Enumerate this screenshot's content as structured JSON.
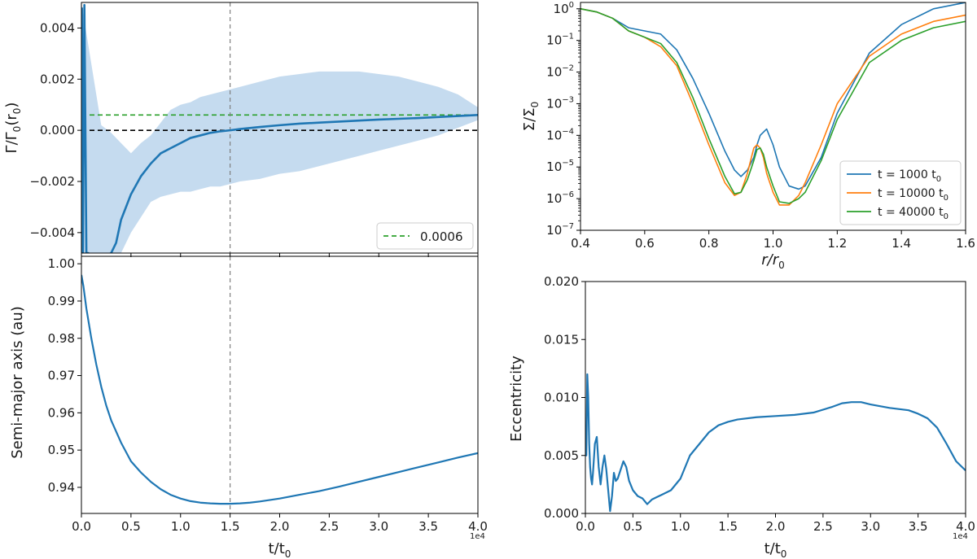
{
  "chart_data": [
    {
      "id": "torque",
      "type": "line",
      "xlim": [
        0,
        40000
      ],
      "ylim": [
        -0.0048,
        0.005
      ],
      "xticks": [
        0,
        5000,
        10000,
        15000,
        20000,
        25000,
        30000,
        35000,
        40000
      ],
      "xticklabels": [
        "",
        "",
        "",
        "",
        "",
        "",
        "",
        "",
        ""
      ],
      "yticks": [
        -0.004,
        -0.002,
        0.0,
        0.002,
        0.004
      ],
      "yticklabels": [
        "−0.004",
        "−0.002",
        "0.000",
        "0.002",
        "0.004"
      ],
      "ylabel_main": "Γ/Γ",
      "ylabel_sub": "0",
      "ylabel_tail": "(r",
      "ylabel_sub2": "0",
      "ylabel_end": ")",
      "legend": [
        {
          "label": "0.0006",
          "color": "#2ca02c",
          "style": "dashed"
        }
      ],
      "hlines": [
        {
          "y": 0.0006,
          "color": "#2ca02c"
        },
        {
          "y": 0.0,
          "color": "#000000"
        }
      ],
      "vline_x": 15000,
      "series": [
        {
          "name": "torque running mean",
          "color": "#1f77b4",
          "x": [
            50,
            150,
            300,
            500,
            700,
            900,
            1100,
            1300,
            1500,
            1800,
            2100,
            2500,
            3000,
            3500,
            4000,
            5000,
            6000,
            7000,
            8000,
            9000,
            10000,
            11000,
            12000,
            13000,
            14000,
            15000,
            16000,
            17000,
            18000,
            20000,
            22000,
            24000,
            26000,
            28000,
            30000,
            32000,
            34000,
            36000,
            38000,
            40000
          ],
          "y": [
            0.0048,
            -0.0048,
            0.0049,
            -0.0048,
            -0.0048,
            -0.0049,
            -0.0049,
            -0.0049,
            -0.0049,
            -0.0049,
            -0.0049,
            -0.0049,
            -0.0048,
            -0.0044,
            -0.0035,
            -0.0025,
            -0.0018,
            -0.0013,
            -0.0009,
            -0.0007,
            -0.0005,
            -0.0003,
            -0.0002,
            -0.0001,
            -4e-05,
            0.0,
            5e-05,
            9e-05,
            0.00013,
            0.0002,
            0.00026,
            0.0003,
            0.00034,
            0.00038,
            0.00042,
            0.00045,
            0.00048,
            0.00052,
            0.00056,
            0.0006
          ]
        }
      ],
      "band": {
        "name": "torque spread",
        "color": "#a6c8e6",
        "x": [
          0,
          2000,
          3000,
          4000,
          5000,
          6000,
          7000,
          8000,
          9000,
          10000,
          11000,
          12000,
          13000,
          14000,
          15000,
          16000,
          18000,
          20000,
          22000,
          24000,
          26000,
          28000,
          30000,
          32000,
          34000,
          36000,
          38000,
          40000
        ],
        "upper": [
          0.005,
          0.0002,
          -0.0001,
          -0.0005,
          -0.0009,
          -0.0005,
          -0.0002,
          0.0003,
          0.0008,
          0.001,
          0.0011,
          0.0013,
          0.0014,
          0.0015,
          0.0016,
          0.0017,
          0.0019,
          0.0021,
          0.0022,
          0.0023,
          0.0023,
          0.0023,
          0.0022,
          0.0021,
          0.0019,
          0.0017,
          0.0014,
          0.0009
        ],
        "lower": [
          -0.0048,
          -0.0048,
          -0.0048,
          -0.0048,
          -0.004,
          -0.0034,
          -0.0028,
          -0.0026,
          -0.0025,
          -0.0024,
          -0.0024,
          -0.0023,
          -0.0022,
          -0.0022,
          -0.0021,
          -0.002,
          -0.0019,
          -0.0017,
          -0.0016,
          -0.0014,
          -0.0012,
          -0.001,
          -0.0008,
          -0.0006,
          -0.0004,
          -0.0002,
          0.0001,
          0.0004
        ]
      }
    },
    {
      "id": "density",
      "type": "line",
      "yscale": "log",
      "xlim": [
        0.4,
        1.6
      ],
      "ylim_exp": [
        -7,
        0.2
      ],
      "xticks": [
        0.4,
        0.6,
        0.8,
        1.0,
        1.2,
        1.4,
        1.6
      ],
      "xticklabels": [
        "0.4",
        "0.6",
        "0.8",
        "1.0",
        "1.2",
        "1.4",
        "1.6"
      ],
      "ytick_exps": [
        0,
        -1,
        -2,
        -3,
        -4,
        -5,
        -6,
        -7
      ],
      "yticklabels": [
        {
          "base": "10",
          "exp": "0"
        },
        {
          "base": "10",
          "exp": "−1"
        },
        {
          "base": "10",
          "exp": "−2"
        },
        {
          "base": "10",
          "exp": "−3"
        },
        {
          "base": "10",
          "exp": "−4"
        },
        {
          "base": "10",
          "exp": "−5"
        },
        {
          "base": "10",
          "exp": "−6"
        },
        {
          "base": "10",
          "exp": "−7"
        }
      ],
      "xlabel_main": "r/r",
      "xlabel_sub": "0",
      "ylabel_main": "Σ/Σ",
      "ylabel_sub": "0",
      "legend": [
        {
          "label_pre": "t = 1000 t",
          "label_sub": "0",
          "color": "#1f77b4"
        },
        {
          "label_pre": "t = 10000 t",
          "label_sub": "0",
          "color": "#ff7f0e"
        },
        {
          "label_pre": "t = 40000 t",
          "label_sub": "0",
          "color": "#2ca02c"
        }
      ],
      "x": [
        0.4,
        0.45,
        0.5,
        0.55,
        0.6,
        0.65,
        0.7,
        0.75,
        0.8,
        0.85,
        0.88,
        0.9,
        0.92,
        0.94,
        0.95,
        0.96,
        0.97,
        0.98,
        1.0,
        1.02,
        1.05,
        1.08,
        1.1,
        1.15,
        1.2,
        1.3,
        1.4,
        1.5,
        1.6
      ],
      "series": [
        {
          "name": "t = 1000 t0",
          "color": "#1f77b4",
          "log10_y": [
            0,
            -0.1,
            -0.3,
            -0.6,
            -0.7,
            -0.8,
            -1.3,
            -2.2,
            -3.3,
            -4.5,
            -5.1,
            -5.3,
            -5.1,
            -4.7,
            -4.3,
            -4.0,
            -3.9,
            -3.8,
            -4.3,
            -5.0,
            -5.6,
            -5.7,
            -5.6,
            -4.7,
            -3.3,
            -1.4,
            -0.5,
            0.0,
            0.2
          ]
        },
        {
          "name": "t = 10000 t0",
          "color": "#ff7f0e",
          "log10_y": [
            0,
            -0.1,
            -0.3,
            -0.7,
            -0.9,
            -1.2,
            -1.8,
            -3.0,
            -4.3,
            -5.5,
            -5.9,
            -5.8,
            -5.2,
            -4.4,
            -4.3,
            -4.4,
            -4.7,
            -5.2,
            -5.8,
            -6.2,
            -6.2,
            -5.9,
            -5.5,
            -4.3,
            -3.0,
            -1.5,
            -0.8,
            -0.4,
            -0.2
          ]
        },
        {
          "name": "t = 40000 t0",
          "color": "#2ca02c",
          "log10_y": [
            0,
            -0.1,
            -0.3,
            -0.7,
            -0.9,
            -1.1,
            -1.7,
            -2.8,
            -4.1,
            -5.3,
            -5.85,
            -5.8,
            -5.4,
            -4.8,
            -4.45,
            -4.4,
            -4.6,
            -5.0,
            -5.6,
            -6.1,
            -6.15,
            -6.0,
            -5.8,
            -4.8,
            -3.5,
            -1.7,
            -1.0,
            -0.6,
            -0.4
          ]
        }
      ]
    },
    {
      "id": "semimajor",
      "type": "line",
      "xlim": [
        0,
        40000
      ],
      "ylim": [
        0.933,
        1.002
      ],
      "xticks": [
        0,
        5000,
        10000,
        15000,
        20000,
        25000,
        30000,
        35000,
        40000
      ],
      "xticklabels": [
        "0.0",
        "0.5",
        "1.0",
        "1.5",
        "2.0",
        "2.5",
        "3.0",
        "3.5",
        "4.0"
      ],
      "yticks": [
        0.94,
        0.95,
        0.96,
        0.97,
        0.98,
        0.99,
        1.0
      ],
      "yticklabels": [
        "0.94",
        "0.95",
        "0.96",
        "0.97",
        "0.98",
        "0.99",
        "1.00"
      ],
      "offset_text": "1e4",
      "xlabel_main": "t/t",
      "xlabel_sub": "0",
      "ylabel": "Semi-major axis (au)",
      "vline_x": 15000,
      "series": [
        {
          "name": "semi-major axis",
          "color": "#1f77b4",
          "x": [
            0,
            200,
            500,
            1000,
            1500,
            2000,
            2500,
            3000,
            4000,
            5000,
            6000,
            7000,
            8000,
            9000,
            10000,
            11000,
            12000,
            13000,
            14000,
            15000,
            16000,
            17000,
            18000,
            20000,
            22000,
            24000,
            26000,
            28000,
            30000,
            32000,
            34000,
            36000,
            38000,
            40000
          ],
          "y": [
            0.997,
            0.994,
            0.988,
            0.98,
            0.973,
            0.967,
            0.962,
            0.958,
            0.952,
            0.947,
            0.944,
            0.9415,
            0.9395,
            0.938,
            0.937,
            0.9363,
            0.9359,
            0.9357,
            0.9356,
            0.9356,
            0.9357,
            0.9359,
            0.9362,
            0.937,
            0.938,
            0.939,
            0.9402,
            0.9415,
            0.9428,
            0.9441,
            0.9454,
            0.9467,
            0.948,
            0.9492
          ]
        }
      ]
    },
    {
      "id": "eccentricity",
      "type": "line",
      "xlim": [
        0,
        40000
      ],
      "ylim": [
        0.0,
        0.02
      ],
      "xticks": [
        0,
        5000,
        10000,
        15000,
        20000,
        25000,
        30000,
        35000,
        40000
      ],
      "xticklabels": [
        "0.0",
        "0.5",
        "1.0",
        "1.5",
        "2.0",
        "2.5",
        "3.0",
        "3.5",
        "4.0"
      ],
      "yticks": [
        0.0,
        0.005,
        0.01,
        0.015,
        0.02
      ],
      "yticklabels": [
        "0.000",
        "0.005",
        "0.010",
        "0.015",
        "0.020"
      ],
      "offset_text": "1e4",
      "xlabel_main": "t/t",
      "xlabel_sub": "0",
      "ylabel": "Eccentricity",
      "series": [
        {
          "name": "eccentricity",
          "color": "#1f77b4",
          "x": [
            0,
            100,
            200,
            300,
            400,
            500,
            600,
            700,
            800,
            1000,
            1200,
            1400,
            1600,
            1800,
            2000,
            2200,
            2400,
            2600,
            2800,
            3000,
            3200,
            3400,
            3600,
            3800,
            4000,
            4300,
            4600,
            5000,
            5500,
            6000,
            6500,
            7000,
            7500,
            8000,
            8500,
            9000,
            10000,
            11000,
            12000,
            13000,
            14000,
            15000,
            16000,
            18000,
            20000,
            22000,
            24000,
            26000,
            27000,
            28000,
            29000,
            30000,
            32000,
            34000,
            35000,
            36000,
            37000,
            38000,
            39000,
            40000
          ],
          "y": [
            0.007,
            0.005,
            0.012,
            0.01,
            0.006,
            0.004,
            0.003,
            0.0025,
            0.0035,
            0.006,
            0.0066,
            0.004,
            0.0025,
            0.004,
            0.005,
            0.0038,
            0.002,
            0.0002,
            0.0015,
            0.0035,
            0.0028,
            0.003,
            0.0035,
            0.004,
            0.0045,
            0.004,
            0.0028,
            0.002,
            0.0015,
            0.0013,
            0.0008,
            0.0012,
            0.0014,
            0.0016,
            0.0018,
            0.002,
            0.003,
            0.005,
            0.006,
            0.007,
            0.0076,
            0.0079,
            0.0081,
            0.0083,
            0.0084,
            0.0085,
            0.0087,
            0.0092,
            0.0095,
            0.0096,
            0.0096,
            0.0094,
            0.0091,
            0.0089,
            0.0086,
            0.0082,
            0.0074,
            0.006,
            0.0045,
            0.0037
          ]
        }
      ]
    }
  ]
}
